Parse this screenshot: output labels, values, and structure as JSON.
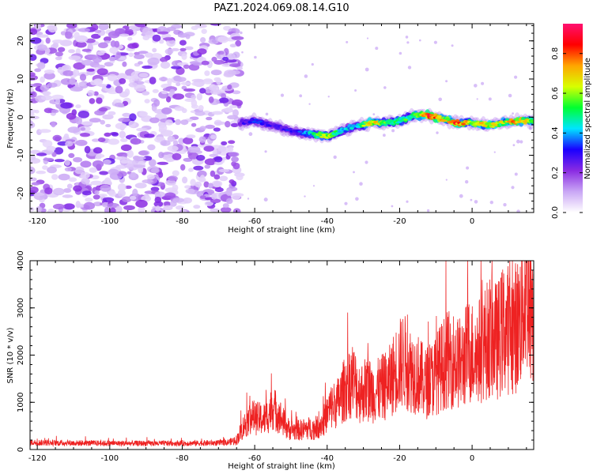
{
  "figure": {
    "title": "PAZ1.2024.069.08.14.G10"
  },
  "chart_data": [
    {
      "type": "heatmap",
      "title": "PAZ1.2024.069.08.14.G10",
      "xlabel": "Height of straight line (km)",
      "ylabel": "Frequency (Hz)",
      "xlim": [
        -122,
        17
      ],
      "ylim": [
        -25,
        24.5
      ],
      "xticks": [
        -120,
        -100,
        -80,
        -60,
        -40,
        -20,
        0
      ],
      "yticks": [
        -20,
        -10,
        0,
        10,
        20
      ],
      "grid": false,
      "colorbar": {
        "label": "Normalized spectral amplitude",
        "range": [
          0.0,
          0.95
        ],
        "ticks": [
          0.0,
          0.2,
          0.4,
          0.6,
          0.8
        ],
        "tick_labels": [
          "0.0",
          "0.2",
          "0.4",
          "0.6",
          "0.8"
        ],
        "colors": [
          "#ffffff",
          "#c9a6f5",
          "#8a2be2",
          "#1a00ff",
          "#00e5ff",
          "#00ff30",
          "#d8ff00",
          "#ffa500",
          "#ff0000",
          "#ff1070"
        ]
      },
      "noise_region": {
        "x_from": -122,
        "x_to": -64,
        "amplitude": [
          0.05,
          0.25
        ]
      },
      "signal_track": [
        {
          "x": -64,
          "freq": -1.5,
          "amp": 0.25
        },
        {
          "x": -60,
          "freq": -1.0,
          "amp": 0.35
        },
        {
          "x": -56,
          "freq": -2.0,
          "amp": 0.3
        },
        {
          "x": -52,
          "freq": -3.0,
          "amp": 0.3
        },
        {
          "x": -48,
          "freq": -4.0,
          "amp": 0.3
        },
        {
          "x": -44,
          "freq": -4.5,
          "amp": 0.45
        },
        {
          "x": -40,
          "freq": -5.0,
          "amp": 0.65
        },
        {
          "x": -36,
          "freq": -3.5,
          "amp": 0.45
        },
        {
          "x": -32,
          "freq": -2.5,
          "amp": 0.4
        },
        {
          "x": -28,
          "freq": -1.5,
          "amp": 0.7
        },
        {
          "x": -24,
          "freq": -1.5,
          "amp": 0.55
        },
        {
          "x": -20,
          "freq": -1.0,
          "amp": 0.5
        },
        {
          "x": -16,
          "freq": 0.5,
          "amp": 0.55
        },
        {
          "x": -12,
          "freq": 0.5,
          "amp": 0.85
        },
        {
          "x": -8,
          "freq": -0.5,
          "amp": 0.65
        },
        {
          "x": -4,
          "freq": -1.5,
          "amp": 0.8
        },
        {
          "x": 0,
          "freq": -1.5,
          "amp": 0.6
        },
        {
          "x": 4,
          "freq": -2.0,
          "amp": 0.7
        },
        {
          "x": 8,
          "freq": -1.5,
          "amp": 0.6
        },
        {
          "x": 12,
          "freq": -1.0,
          "amp": 0.75
        },
        {
          "x": 17,
          "freq": -1.0,
          "amp": 0.6
        }
      ]
    },
    {
      "type": "line",
      "xlabel": "Height of straight line (km)",
      "ylabel": "SNR (10 * v/v)",
      "xlim": [
        -122,
        17
      ],
      "ylim": [
        0,
        4000
      ],
      "xticks": [
        -120,
        -100,
        -80,
        -60,
        -40,
        -20,
        0
      ],
      "yticks": [
        0,
        1000,
        2000,
        3000,
        4000
      ],
      "grid": false,
      "color": "#ee2222",
      "series": [
        {
          "x": [
            -122,
            -115,
            -105,
            -95,
            -85,
            -75,
            -68,
            -65,
            -63,
            -61,
            -59,
            -57,
            -55,
            -53,
            -51,
            -49,
            -47,
            -45,
            -43,
            -41,
            -39,
            -37,
            -35,
            -33,
            -31,
            -29,
            -27,
            -25,
            -23,
            -21,
            -19,
            -17,
            -15,
            -13,
            -11,
            -9,
            -7,
            -5,
            -3,
            -1,
            1,
            3,
            5,
            7,
            9,
            11,
            13,
            15,
            17
          ],
          "values": [
            150,
            140,
            135,
            130,
            130,
            135,
            140,
            200,
            500,
            700,
            650,
            650,
            900,
            700,
            450,
            400,
            420,
            450,
            450,
            600,
            900,
            1000,
            1300,
            1500,
            1200,
            1300,
            1200,
            1300,
            1400,
            1700,
            1900,
            1700,
            1600,
            1400,
            1500,
            1700,
            1900,
            1900,
            1800,
            2100,
            2000,
            2200,
            2400,
            2300,
            2600,
            2500,
            2700,
            3500,
            3000
          ]
        }
      ]
    }
  ]
}
